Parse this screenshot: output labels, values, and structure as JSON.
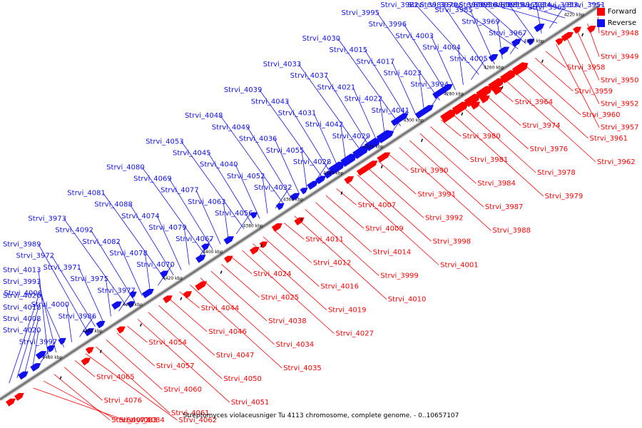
{
  "legend": {
    "forward_label": "Forward",
    "reverse_label": "Reverse",
    "forward_color": "#ff0000",
    "reverse_color": "#1010ee"
  },
  "title": "Streptomyces violaceusniger Tu 4113 chromosome, complete genome. - 0..10657107",
  "colors": {
    "backbone": "#777777",
    "forward": "#ff0000",
    "reverse": "#1010ee",
    "tick": "#000000"
  },
  "ticks": [
    "4220 kbp",
    "4240 kbp",
    "4260 kbp",
    "4280 kbp",
    "4300 kbp",
    "4320 kbp",
    "4340 kbp",
    "4360 kbp",
    "4380 kbp",
    "4400 kbp",
    "4420 kbp",
    "4440 kbp",
    "4460 kbp",
    "4480 kbp"
  ],
  "reverse_labels": [
    "Strvi_3951",
    "Strvi_3953",
    "Strvi_3954",
    "Strvi_3955",
    "Strvi_3956",
    "Strvi_3963",
    "Strvi_3965",
    "Strvi_3968",
    "Strvi_3966",
    "Strvi_3970",
    "Strvi_3967",
    "Strvi_3969",
    "Strvi_3985",
    "Strvi_3983",
    "Strvi_3982",
    "Strvi_4005",
    "Strvi_4004",
    "Strvi_4003",
    "Strvi_3996",
    "Strvi_3995",
    "Strvi_3994",
    "Strvi_4023",
    "Strvi_4017",
    "Strvi_4015",
    "Strvi_4030",
    "Strvi_4041",
    "Strvi_4022",
    "Strvi_4021",
    "Strvi_4037",
    "Strvi_4033",
    "Strvi_4029",
    "Strvi_4042",
    "Strvi_4031",
    "Strvi_4043",
    "Strvi_4039",
    "Strvi_4028",
    "Strvi_4055",
    "Strvi_4036",
    "Strvi_4049",
    "Strvi_4048",
    "Strvi_4032",
    "Strvi_4052",
    "Strvi_4040",
    "Strvi_4045",
    "Strvi_4053",
    "Strvi_4056",
    "Strvi_4063",
    "Strvi_4077",
    "Strvi_4069",
    "Strvi_4080",
    "Strvi_4067",
    "Strvi_4079",
    "Strvi_4074",
    "Strvi_4088",
    "Strvi_4081",
    "Strvi_4070",
    "Strvi_4078",
    "Strvi_4082",
    "Strvi_4092",
    "Strvi_3973",
    "Strvi_3977",
    "Strvi_3975",
    "Strvi_3971",
    "Strvi_3972",
    "Strvi_3989",
    "Strvi_3986",
    "Strvi_4000",
    "Strvi_4006",
    "Strvi_3993",
    "Strvi_4013",
    "Strvi_3997",
    "Strvi_4020",
    "Strvi_4008",
    "Strvi_4018",
    "Strvi_4026"
  ],
  "forward_labels": [
    "Strvi_3948",
    "Strvi_3949",
    "Strvi_3950",
    "Strvi_3952",
    "Strvi_3957",
    "Strvi_3958",
    "Strvi_3959",
    "Strvi_3960",
    "Strvi_3961",
    "Strvi_3962",
    "Strvi_3964",
    "Strvi_3974",
    "Strvi_3976",
    "Strvi_3978",
    "Strvi_3979",
    "Strvi_3980",
    "Strvi_3981",
    "Strvi_3984",
    "Strvi_3987",
    "Strvi_3988",
    "Strvi_3990",
    "Strvi_3991",
    "Strvi_3992",
    "Strvi_3998",
    "Strvi_4001",
    "Strvi_4007",
    "Strvi_4009",
    "Strvi_4014",
    "Strvi_3999",
    "Strvi_4010",
    "Strvi_4011",
    "Strvi_4012",
    "Strvi_4016",
    "Strvi_4019",
    "Strvi_4027",
    "Strvi_4024",
    "Strvi_4025",
    "Strvi_4038",
    "Strvi_4034",
    "Strvi_4035",
    "Strvi_4044",
    "Strvi_4046",
    "Strvi_4047",
    "Strvi_4050",
    "Strvi_4051",
    "Strvi_4054",
    "Strvi_4057",
    "Strvi_4060",
    "Strvi_4061",
    "Strvi_4062",
    "Strvi_4065",
    "Strvi_4076",
    "Strvi_4072",
    "Strvi_4083",
    "Strvi_4084"
  ]
}
